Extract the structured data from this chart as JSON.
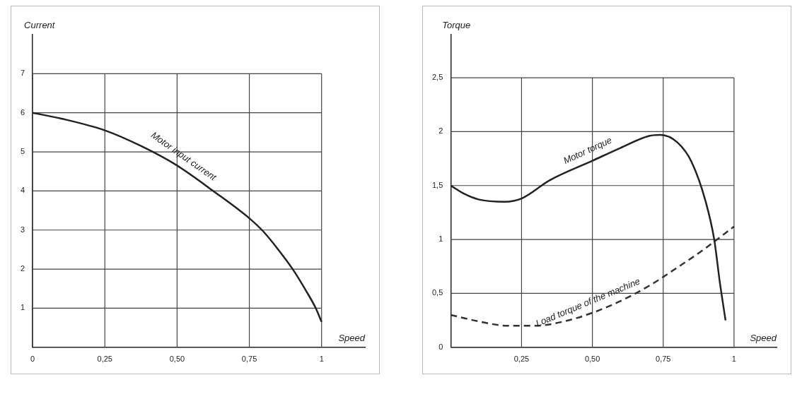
{
  "chart_data": [
    {
      "type": "line",
      "xlabel": "Speed",
      "ylabel": "Current",
      "xlim": [
        0,
        1.15
      ],
      "ylim": [
        0,
        8
      ],
      "xticks": [
        {
          "value": 0,
          "label": "0"
        },
        {
          "value": 0.25,
          "label": "0,25"
        },
        {
          "value": 0.5,
          "label": "0,50"
        },
        {
          "value": 0.75,
          "label": "0,75"
        },
        1
      ],
      "yticks": [
        1,
        2,
        3,
        4,
        5,
        6,
        7
      ],
      "grid": true,
      "legend": false,
      "series": [
        {
          "name": "Motor input current",
          "color": "#222222",
          "line_style": "solid",
          "x": [
            0,
            0.1,
            0.25,
            0.375,
            0.5,
            0.625,
            0.75,
            0.8,
            0.85,
            0.9,
            0.95,
            0.98,
            1
          ],
          "values": [
            6,
            5.85,
            5.55,
            5.15,
            4.65,
            4.0,
            3.3,
            2.95,
            2.5,
            2.0,
            1.4,
            1.0,
            0.65
          ]
        }
      ]
    },
    {
      "type": "line",
      "xlabel": "Speed",
      "ylabel": "Torque",
      "xlim": [
        0,
        1.15
      ],
      "ylim": [
        0,
        2.9
      ],
      "xticks": [
        {
          "value": 0.25,
          "label": "0,25"
        },
        {
          "value": 0.5,
          "label": "0,50"
        },
        {
          "value": 0.75,
          "label": "0,75"
        },
        1
      ],
      "yticks": [
        {
          "value": 0,
          "label": "0"
        },
        {
          "value": 0.5,
          "label": "0,5"
        },
        1,
        {
          "value": 1.5,
          "label": "1,5"
        },
        2,
        {
          "value": 2.5,
          "label": "2,5"
        }
      ],
      "grid": true,
      "legend": false,
      "series": [
        {
          "name": "Motor torque",
          "color": "#222222",
          "line_style": "solid",
          "x": [
            0,
            0.05,
            0.1,
            0.19,
            0.25,
            0.35,
            0.5,
            0.6,
            0.7,
            0.74,
            0.8,
            0.85,
            0.9,
            0.93,
            0.95,
            0.97
          ],
          "values": [
            1.5,
            1.42,
            1.37,
            1.35,
            1.38,
            1.55,
            1.73,
            1.85,
            1.96,
            1.97,
            1.9,
            1.72,
            1.35,
            1.0,
            0.6,
            0.25
          ]
        },
        {
          "name": "Load torque of the machine",
          "color": "#333333",
          "line_style": "dashed",
          "x": [
            0,
            0.1,
            0.2,
            0.3,
            0.4,
            0.5,
            0.6,
            0.7,
            0.8,
            0.9,
            0.93,
            1
          ],
          "values": [
            0.3,
            0.24,
            0.2,
            0.2,
            0.24,
            0.32,
            0.43,
            0.57,
            0.74,
            0.92,
            0.98,
            1.12
          ]
        }
      ]
    }
  ]
}
